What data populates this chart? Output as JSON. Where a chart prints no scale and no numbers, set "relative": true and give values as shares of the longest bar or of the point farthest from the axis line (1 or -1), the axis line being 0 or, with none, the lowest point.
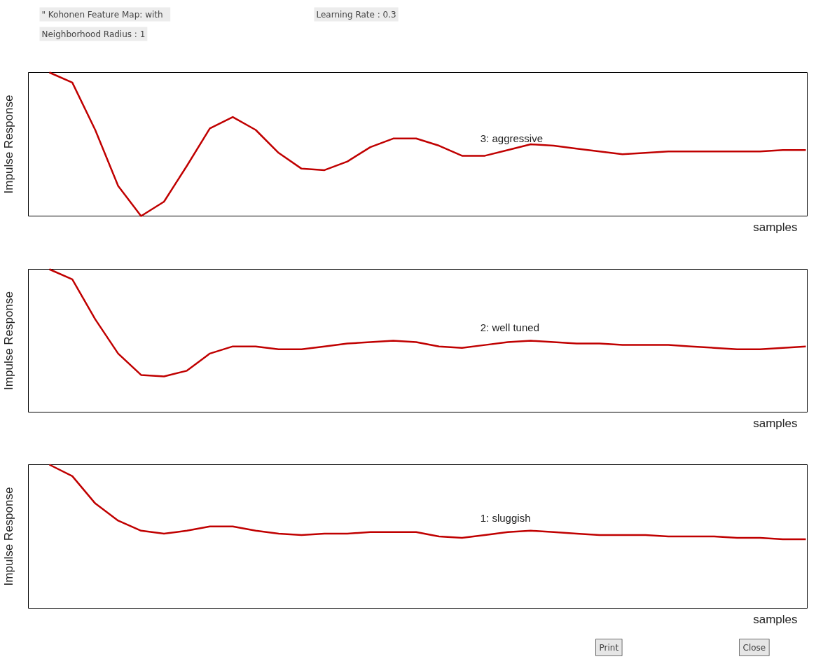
{
  "chart_data": [
    {
      "type": "line",
      "relative": true,
      "xlabel": "samples",
      "ylabel": "Impulse Response",
      "legend": false,
      "annotations": [
        "\" Kohonen Feature Map:   with",
        "Learning Rate : 0.3",
        "Neighborhood Radius : 1"
      ],
      "categories": [
        null,
        null,
        null,
        null,
        null,
        null,
        null,
        null,
        null,
        null,
        null,
        null,
        null,
        null,
        null,
        null,
        null,
        null,
        null,
        null,
        null,
        null,
        null,
        null,
        null,
        null,
        null,
        null,
        null,
        null,
        null,
        null,
        null,
        null
      ],
      "series": [
        {
          "name": "3: aggressive",
          "color": "#c00000",
          "values": [
            1.0,
            0.93,
            0.6,
            0.21,
            0.0,
            0.1,
            0.35,
            0.61,
            0.69,
            0.6,
            0.44,
            0.33,
            0.32,
            0.38,
            0.48,
            0.54,
            0.54,
            0.49,
            0.42,
            0.42,
            0.46,
            0.5,
            0.49,
            0.47,
            0.45,
            0.43,
            0.44,
            0.45,
            0.45,
            0.45,
            0.45,
            0.45,
            0.46,
            0.46
          ]
        }
      ]
    },
    {
      "type": "line",
      "relative": true,
      "xlabel": "samples",
      "ylabel": "Impulse Response",
      "legend": false,
      "categories": [
        null,
        null,
        null,
        null,
        null,
        null,
        null,
        null,
        null,
        null,
        null,
        null,
        null,
        null,
        null,
        null,
        null,
        null,
        null,
        null,
        null,
        null,
        null,
        null,
        null,
        null,
        null,
        null,
        null,
        null,
        null,
        null,
        null,
        null
      ],
      "series": [
        {
          "name": "2: well tuned",
          "color": "#c00000",
          "values": [
            1.0,
            0.93,
            0.65,
            0.41,
            0.26,
            0.25,
            0.29,
            0.41,
            0.46,
            0.46,
            0.44,
            0.44,
            0.46,
            0.48,
            0.49,
            0.5,
            0.49,
            0.46,
            0.45,
            0.47,
            0.49,
            0.5,
            0.49,
            0.48,
            0.48,
            0.47,
            0.47,
            0.47,
            0.46,
            0.45,
            0.44,
            0.44,
            0.45,
            0.46
          ]
        }
      ]
    },
    {
      "type": "line",
      "relative": true,
      "xlabel": "samples",
      "ylabel": "Impulse Response",
      "legend": false,
      "annotations": [
        "Print",
        "Close"
      ],
      "categories": [
        null,
        null,
        null,
        null,
        null,
        null,
        null,
        null,
        null,
        null,
        null,
        null,
        null,
        null,
        null,
        null,
        null,
        null,
        null,
        null,
        null,
        null,
        null,
        null,
        null,
        null,
        null,
        null,
        null,
        null,
        null,
        null,
        null,
        null
      ],
      "series": [
        {
          "name": "1: sluggish",
          "color": "#c00000",
          "values": [
            1.0,
            0.92,
            0.73,
            0.61,
            0.54,
            0.52,
            0.54,
            0.57,
            0.57,
            0.54,
            0.52,
            0.51,
            0.52,
            0.52,
            0.53,
            0.53,
            0.53,
            0.5,
            0.49,
            0.51,
            0.53,
            0.54,
            0.53,
            0.52,
            0.51,
            0.51,
            0.51,
            0.5,
            0.5,
            0.5,
            0.49,
            0.49,
            0.48,
            0.48
          ]
        }
      ]
    }
  ]
}
